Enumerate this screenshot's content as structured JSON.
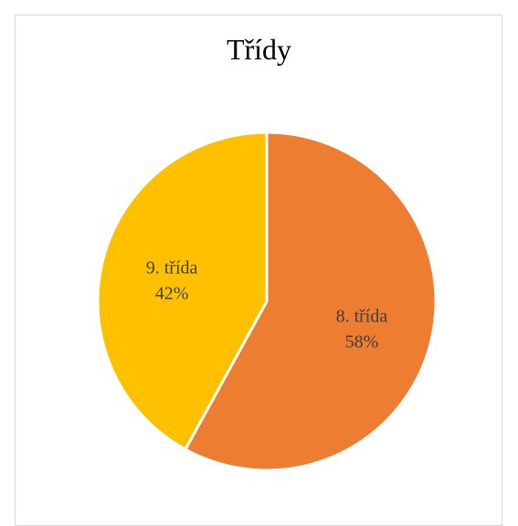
{
  "chart_data": {
    "type": "pie",
    "title": "Třídy",
    "categories": [
      "8. třída",
      "9. třída"
    ],
    "values": [
      58,
      42
    ],
    "value_labels": [
      "58%",
      "42%"
    ],
    "colors": [
      "#ED7D31",
      "#FFC000"
    ],
    "start_angle_deg": 0,
    "direction": "clockwise",
    "legend": "none",
    "data_labels": "inside"
  }
}
